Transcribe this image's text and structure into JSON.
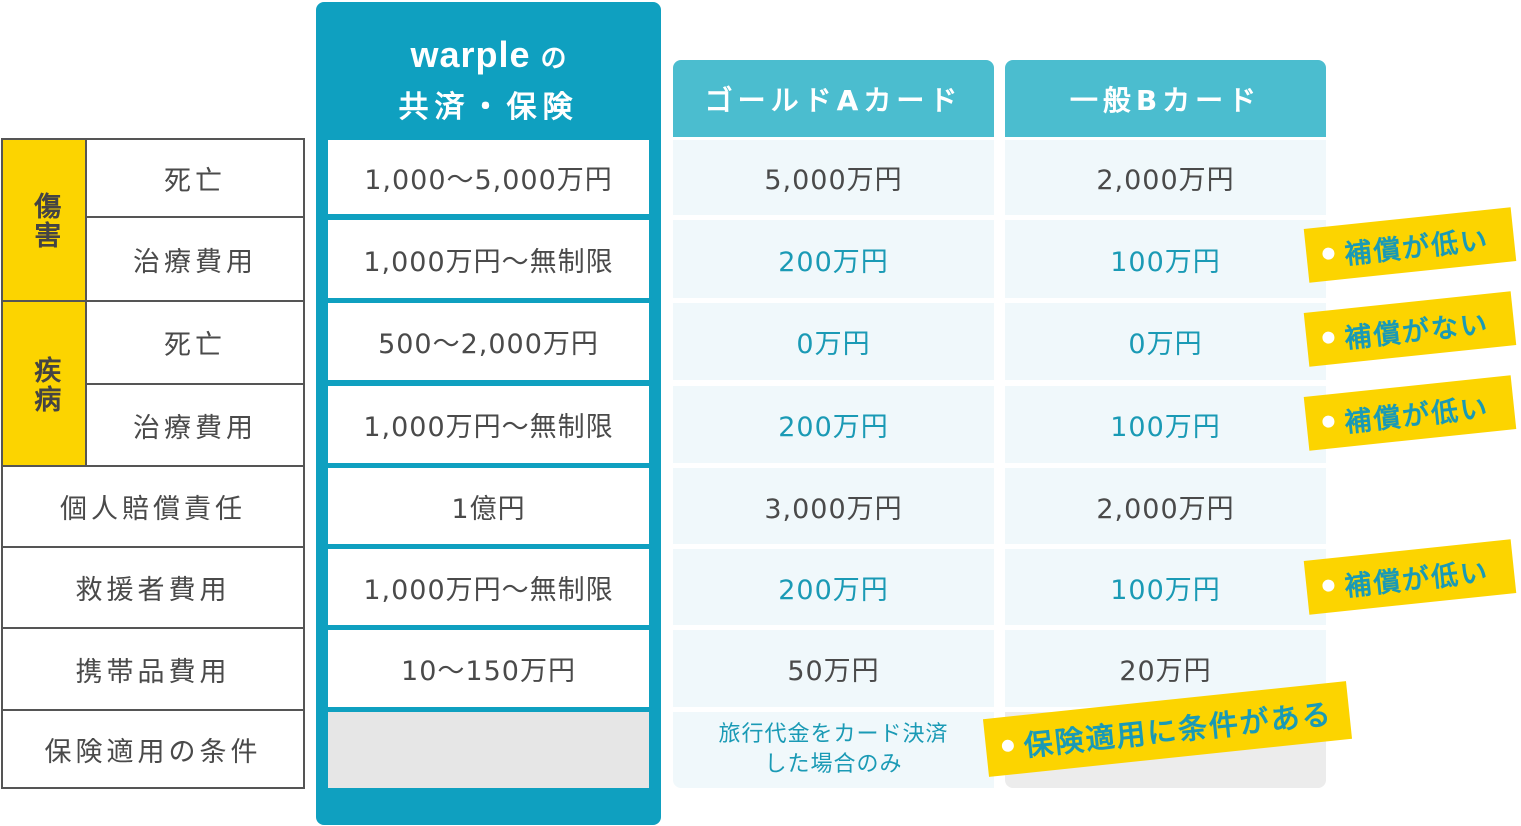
{
  "brand": {
    "logo_text": "warple",
    "logo_suffix": "の",
    "subtitle": "共済・保険"
  },
  "columns": {
    "gold": "ゴールドAカード",
    "general": "一般Bカード"
  },
  "categories": {
    "injury": "傷害",
    "illness": "疾病"
  },
  "row_labels": {
    "death": "死亡",
    "treatment": "治療費用",
    "liability": "個人賠償責任",
    "rescue": "救援者費用",
    "belongings": "携帯品費用",
    "conditions": "保険適用の条件"
  },
  "warple_values": {
    "injury_death": "1,000〜5,000万円",
    "injury_treatment": "1,000万円〜無制限",
    "illness_death": "500〜2,000万円",
    "illness_treatment": "1,000万円〜無制限",
    "liability": "1億円",
    "rescue": "1,000万円〜無制限",
    "belongings": "10〜150万円",
    "conditions": ""
  },
  "gold_values": {
    "injury_death": "5,000万円",
    "injury_treatment": "200万円",
    "illness_death": "0万円",
    "illness_treatment": "200万円",
    "liability": "3,000万円",
    "rescue": "200万円",
    "belongings": "50万円",
    "conditions_line1": "旅行代金をカード決済",
    "conditions_line2": "した場合のみ"
  },
  "general_values": {
    "injury_death": "2,000万円",
    "injury_treatment": "100万円",
    "illness_death": "0万円",
    "illness_treatment": "100万円",
    "liability": "2,000万円",
    "rescue": "100万円",
    "belongings": "20万円",
    "conditions": ""
  },
  "badges": {
    "low1": "補償が低い",
    "none": "補償がない",
    "low2": "補償が低い",
    "low3": "補償が低い",
    "condition": "保険適用に条件がある"
  },
  "colors": {
    "warple_teal": "#0fa0c0",
    "card_header": "#4bbdcf",
    "highlight_yellow": "#fcd400",
    "accent_text": "#1a9ab5"
  }
}
